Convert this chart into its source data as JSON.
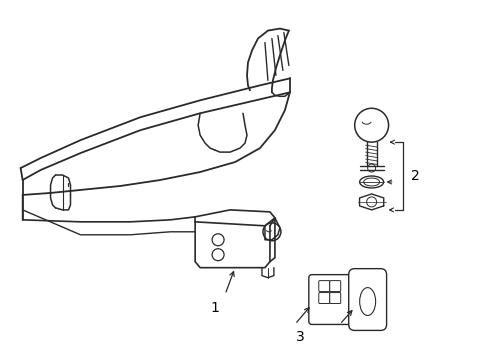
{
  "background_color": "#ffffff",
  "line_color": "#2a2a2a",
  "line_width": 1.1,
  "label_color": "#000000",
  "label_fontsize": 10,
  "figsize": [
    4.89,
    3.6
  ],
  "dpi": 100
}
